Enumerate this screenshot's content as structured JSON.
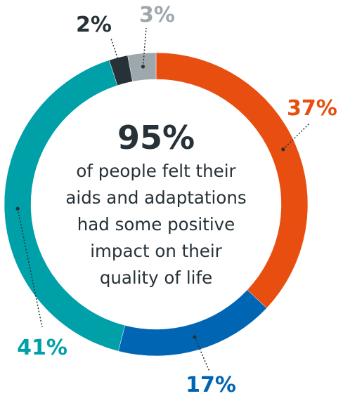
{
  "chart_data": {
    "type": "pie",
    "slices": [
      {
        "label": "37%",
        "value": 37,
        "color": "#e84e0f"
      },
      {
        "label": "17%",
        "value": 17,
        "color": "#0065b3"
      },
      {
        "label": "41%",
        "value": 41,
        "color": "#00a0a8"
      },
      {
        "label": "2%",
        "value": 2,
        "color": "#263238"
      },
      {
        "label": "3%",
        "value": 3,
        "color": "#9ea7ab"
      }
    ],
    "center": {
      "headline": "95%",
      "lines": [
        "of people felt their",
        "aids and adaptations",
        "had some positive",
        "impact on their",
        "quality of life"
      ]
    }
  }
}
